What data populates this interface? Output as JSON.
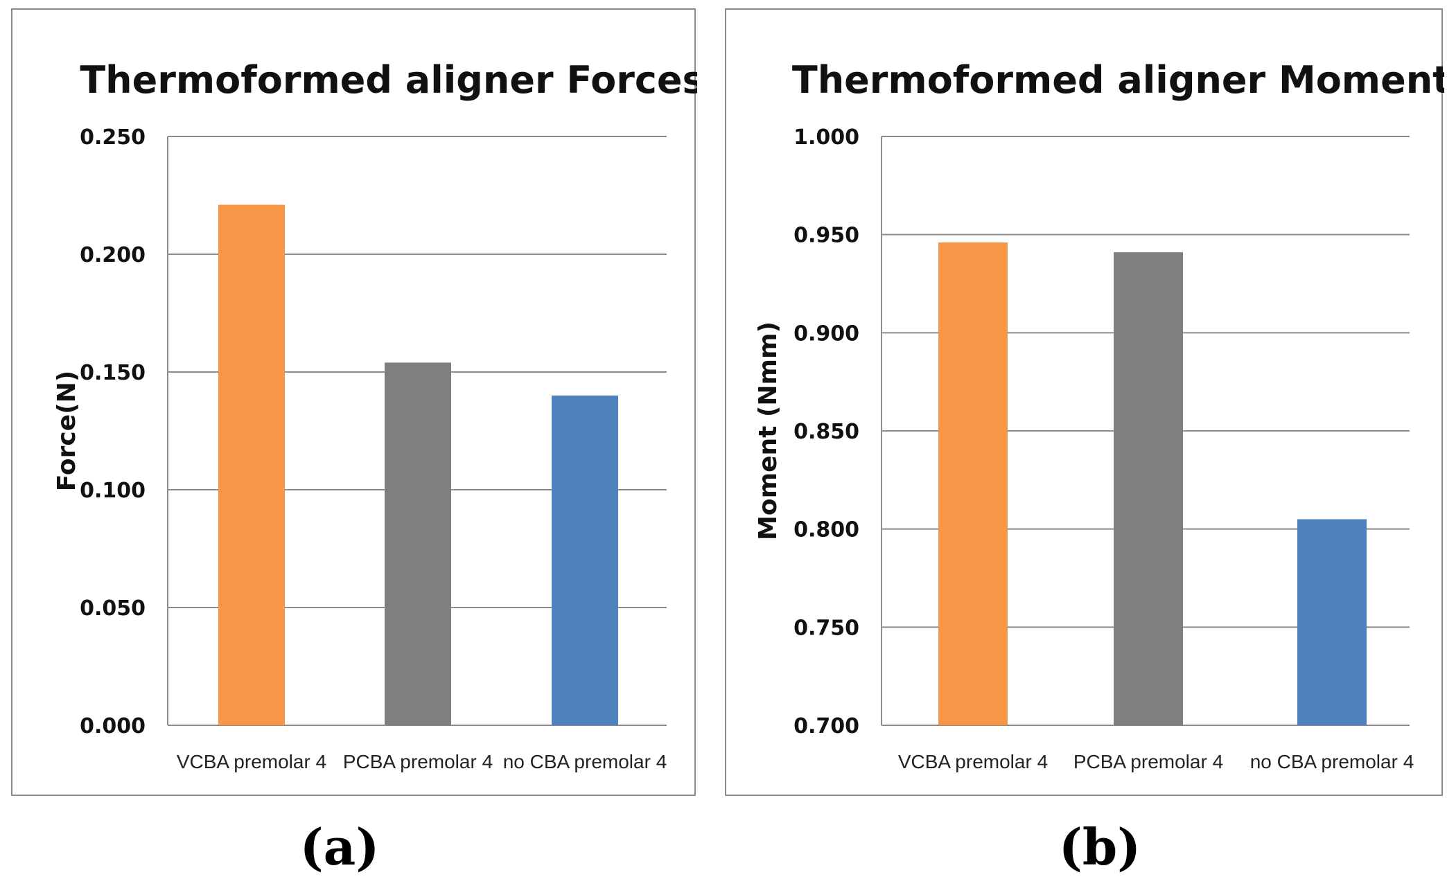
{
  "chart_data": [
    {
      "type": "bar",
      "title": "Thermoformed aligner Forces",
      "xlabel": "",
      "ylabel": "Force(N)",
      "categories": [
        "VCBA premolar 4",
        "PCBA premolar 4",
        "no CBA premolar 4"
      ],
      "values": [
        0.221,
        0.154,
        0.14
      ],
      "colors": [
        "#f79646",
        "#7f7f7f",
        "#4f81bd"
      ],
      "ylim": [
        0,
        0.25
      ],
      "yticks": [
        "0.000",
        "0.050",
        "0.100",
        "0.150",
        "0.200",
        "0.250"
      ],
      "grid": true,
      "legend": "none"
    },
    {
      "type": "bar",
      "title": "Thermoformed aligner Moments",
      "xlabel": "",
      "ylabel": "Moment (Nmm)",
      "categories": [
        "VCBA premolar 4",
        "PCBA premolar 4",
        "no CBA premolar 4"
      ],
      "values": [
        0.946,
        0.941,
        0.805
      ],
      "colors": [
        "#f79646",
        "#7f7f7f",
        "#4f81bd"
      ],
      "ylim": [
        0.7,
        1.0
      ],
      "yticks": [
        "0.700",
        "0.750",
        "0.800",
        "0.850",
        "0.900",
        "0.950",
        "1.000"
      ],
      "grid": true,
      "legend": "none"
    }
  ],
  "panel_labels": [
    "(a)",
    "(b)"
  ]
}
